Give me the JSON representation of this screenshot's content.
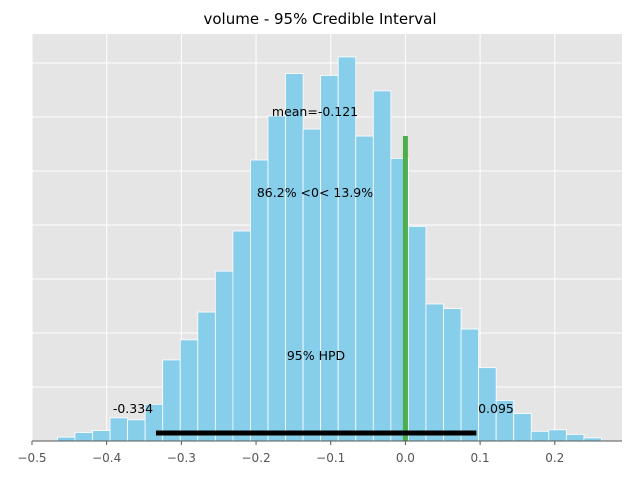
{
  "chart_data": {
    "type": "histogram",
    "title": "volume - 95% Credible Interval",
    "xlabel": "",
    "ylabel": "",
    "xlim": [
      -0.5,
      0.29
    ],
    "ylim": [
      0,
      1
    ],
    "grid": true,
    "x_ticks": [
      "−0.5",
      "−0.4",
      "−0.3",
      "−0.2",
      "−0.1",
      "0.0",
      "0.1",
      "0.2"
    ],
    "x_tick_values": [
      -0.5,
      -0.4,
      -0.3,
      -0.2,
      -0.1,
      0.0,
      0.1,
      0.2
    ],
    "bin_width": 0.0235,
    "bin_starts": [
      -0.466,
      -0.4425,
      -0.419,
      -0.3955,
      -0.372,
      -0.3485,
      -0.325,
      -0.3015,
      -0.278,
      -0.2545,
      -0.231,
      -0.2075,
      -0.184,
      -0.1605,
      -0.137,
      -0.1135,
      -0.09,
      -0.0665,
      -0.043,
      -0.0195,
      0.004,
      0.0275,
      0.051,
      0.0745,
      0.098,
      0.1215,
      0.145,
      0.1685,
      0.192,
      0.2155,
      0.239
    ],
    "bin_heights": [
      0.01,
      0.022,
      0.027,
      0.06,
      0.055,
      0.095,
      0.21,
      0.262,
      0.334,
      0.44,
      0.544,
      0.728,
      0.842,
      0.952,
      0.808,
      0.947,
      0.995,
      0.79,
      0.907,
      0.732,
      0.556,
      0.355,
      0.343,
      0.29,
      0.19,
      0.105,
      0.071,
      0.025,
      0.029,
      0.017,
      0.008
    ],
    "bar_color": "#87ceeb",
    "reference_line": {
      "x": 0.0,
      "height": 0.79,
      "color": "#4daf4a"
    },
    "hpd": {
      "low": -0.334,
      "high": 0.095,
      "color": "#000000"
    },
    "annotations": {
      "mean": "mean=-0.121",
      "ref_split": "86.2% <0< 13.9%",
      "hpd_label": "95% HPD",
      "hpd_low": "-0.334",
      "hpd_high": "0.095"
    },
    "colors": {
      "plot_bg": "#e5e5e5",
      "grid": "#ffffff",
      "axis": "#555555"
    }
  }
}
